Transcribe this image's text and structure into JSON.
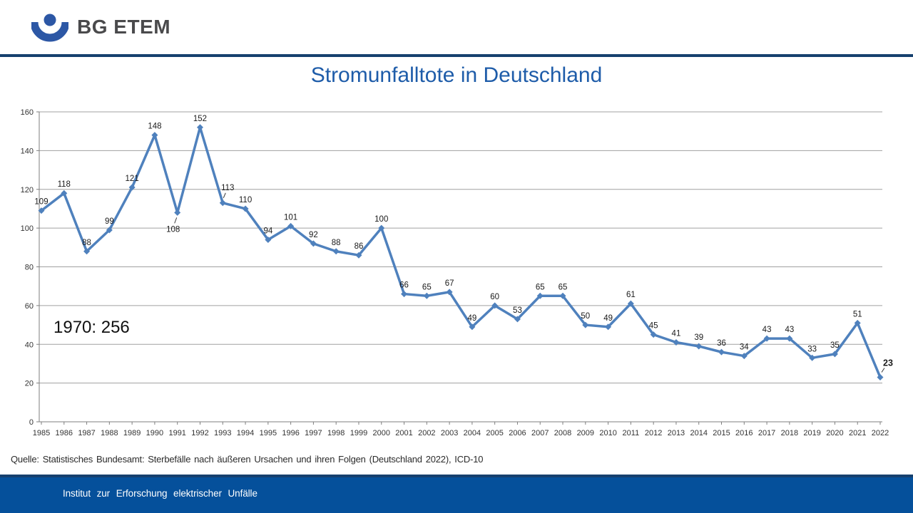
{
  "header": {
    "logo_text": "BG ETEM"
  },
  "title": "Stromunfalltote in Deutschland",
  "annotation": "1970: 256",
  "source": "Quelle: Statistisches Bundesamt: Sterbefälle nach äußeren Ursachen und ihren Folgen (Deutschland 2022), ICD-10",
  "footer": {
    "text": "Institut zur Erforschung elektrischer Unfälle"
  },
  "colors": {
    "title": "#1E5CA9",
    "line": "#4F81BD",
    "grid": "#A0A0A0",
    "axis": "#7F7F7F",
    "label": "#1A1A1A",
    "tick_label": "#333333",
    "footer_bar": "#05509B",
    "rule": "#16406E",
    "logo": "#2C57A5",
    "logo_text": "#4A4A4C"
  },
  "chart_data": {
    "type": "line",
    "title": "Stromunfalltote in Deutschland",
    "categories": [
      "1985",
      "1986",
      "1987",
      "1988",
      "1989",
      "1990",
      "1991",
      "1992",
      "1993",
      "1994",
      "1995",
      "1996",
      "1997",
      "1998",
      "1999",
      "2000",
      "2001",
      "2002",
      "2003",
      "2004",
      "2005",
      "2006",
      "2007",
      "2008",
      "2009",
      "2010",
      "2011",
      "2012",
      "2013",
      "2014",
      "2015",
      "2016",
      "2017",
      "2018",
      "2019",
      "2020",
      "2021",
      "2022"
    ],
    "values": [
      109,
      118,
      88,
      99,
      121,
      148,
      108,
      152,
      113,
      110,
      94,
      101,
      92,
      88,
      86,
      100,
      66,
      65,
      67,
      49,
      60,
      53,
      65,
      65,
      50,
      49,
      61,
      45,
      41,
      39,
      36,
      34,
      43,
      43,
      33,
      35,
      51,
      23
    ],
    "series_name": "Stromunfalltote",
    "xlabel": "",
    "ylabel": "",
    "ylim": [
      0,
      160
    ],
    "ytick_step": 20,
    "grid": true,
    "legend": "none",
    "line_color": "#4F81BD",
    "marker": "diamond",
    "data_labels": true,
    "annotation": "1970: 256",
    "label_special": {
      "1991": "below-leader",
      "1993": "above-leader",
      "2022": "bold-above-leader"
    }
  }
}
